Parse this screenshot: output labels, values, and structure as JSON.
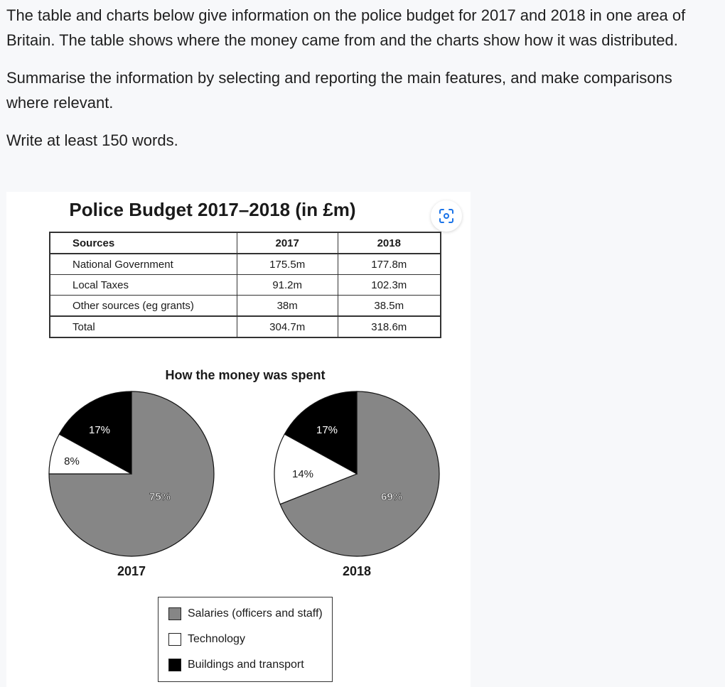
{
  "prompt": {
    "paragraph1": "The table and charts below give information on the police budget for 2017 and 2018 in one area of Britain. The table shows where the money came from and the charts show how it was distributed.",
    "paragraph2": "Summarise the information by selecting and reporting the main features, and make comparisons where relevant.",
    "paragraph3": "Write at least 150 words."
  },
  "figure": {
    "title": "Police Budget 2017–2018 (in £m)",
    "lens_icon": "lens-search-icon"
  },
  "chart_data": [
    {
      "type": "table",
      "columns": [
        "Sources",
        "2017",
        "2018"
      ],
      "rows": [
        [
          "National Government",
          "175.5m",
          "177.8m"
        ],
        [
          "Local Taxes",
          "91.2m",
          "102.3m"
        ],
        [
          "Other sources (eg grants)",
          "38m",
          "38.5m"
        ],
        [
          "Total",
          "304.7m",
          "318.6m"
        ]
      ]
    },
    {
      "type": "pie",
      "title": "How the money was spent",
      "pies": [
        {
          "label": "2017",
          "slices": [
            {
              "name": "Salaries (officers and staff)",
              "value": 75,
              "text": "75%",
              "color": "#868686"
            },
            {
              "name": "Technology",
              "value": 8,
              "text": "8%",
              "color": "#ffffff"
            },
            {
              "name": "Buildings and transport",
              "value": 17,
              "text": "17%",
              "color": "#000000"
            }
          ]
        },
        {
          "label": "2018",
          "slices": [
            {
              "name": "Salaries (officers and staff)",
              "value": 69,
              "text": "69%",
              "color": "#868686"
            },
            {
              "name": "Technology",
              "value": 14,
              "text": "14%",
              "color": "#ffffff"
            },
            {
              "name": "Buildings and transport",
              "value": 17,
              "text": "17%",
              "color": "#000000"
            }
          ]
        }
      ],
      "legend": [
        {
          "label": "Salaries (officers and staff)",
          "color": "#868686"
        },
        {
          "label": "Technology",
          "color": "#ffffff"
        },
        {
          "label": "Buildings and transport",
          "color": "#000000"
        }
      ]
    }
  ]
}
